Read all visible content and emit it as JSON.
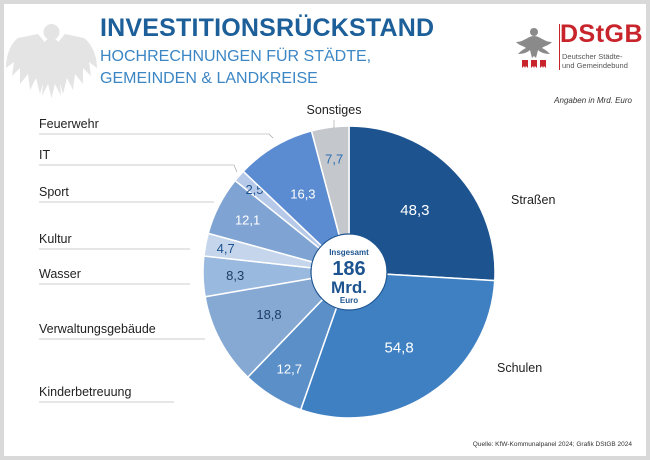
{
  "header": {
    "title": "INVESTITIONSRÜCKSTAND",
    "subtitle_line1": "HOCHRECHNUNGEN FÜR STÄDTE,",
    "subtitle_line2": "GEMEINDEN & LANDKREISE"
  },
  "logo": {
    "name": "DStGB",
    "sub_line1": "Deutscher Städte-",
    "sub_line2": "und Gemeindebund",
    "color": "#c8242b"
  },
  "units_note": "Angaben in Mrd. Euro",
  "source": "Quelle: KfW-Kommunalpanel 2024; Grafik DStGB 2024",
  "center": {
    "line1": "Insgesamt",
    "line2": "186",
    "line3": "Mrd.",
    "line4": "Euro"
  },
  "chart_data": {
    "type": "pie",
    "total": 186,
    "unit": "Mrd. Euro",
    "slices": [
      {
        "label": "Straßen",
        "value": 48.3,
        "display": "48,3",
        "color": "#1d5490",
        "text_color": "#ffffff"
      },
      {
        "label": "Schulen",
        "value": 54.8,
        "display": "54,8",
        "color": "#3f80c2",
        "text_color": "#ffffff"
      },
      {
        "label": "Kinderbetreuung",
        "value": 12.7,
        "display": "12,7",
        "color": "#5a8fc8",
        "text_color": "#ffffff"
      },
      {
        "label": "Verwaltungsgebäude",
        "value": 18.8,
        "display": "18,8",
        "color": "#86a9d4",
        "text_color": "#1d3d66"
      },
      {
        "label": "Wasser",
        "value": 8.3,
        "display": "8,3",
        "color": "#9ab9de",
        "text_color": "#1d3d66"
      },
      {
        "label": "Kultur",
        "value": 4.7,
        "display": "4,7",
        "color": "#c5d6ec",
        "text_color": "#1d5490"
      },
      {
        "label": "Sport",
        "value": 12.1,
        "display": "12,1",
        "color": "#7fa4d4",
        "text_color": "#ffffff"
      },
      {
        "label": "IT",
        "value": 2.5,
        "display": "2,5",
        "color": "#b7c9e8",
        "text_color": "#1d5490"
      },
      {
        "label": "Feuerwehr",
        "value": 16.3,
        "display": "16,3",
        "color": "#5b8bd0",
        "text_color": "#ffffff"
      },
      {
        "label": "Sonstiges",
        "value": 7.7,
        "display": "7,7",
        "color": "#c4c7cc",
        "text_color": "#2d6db3"
      }
    ]
  }
}
